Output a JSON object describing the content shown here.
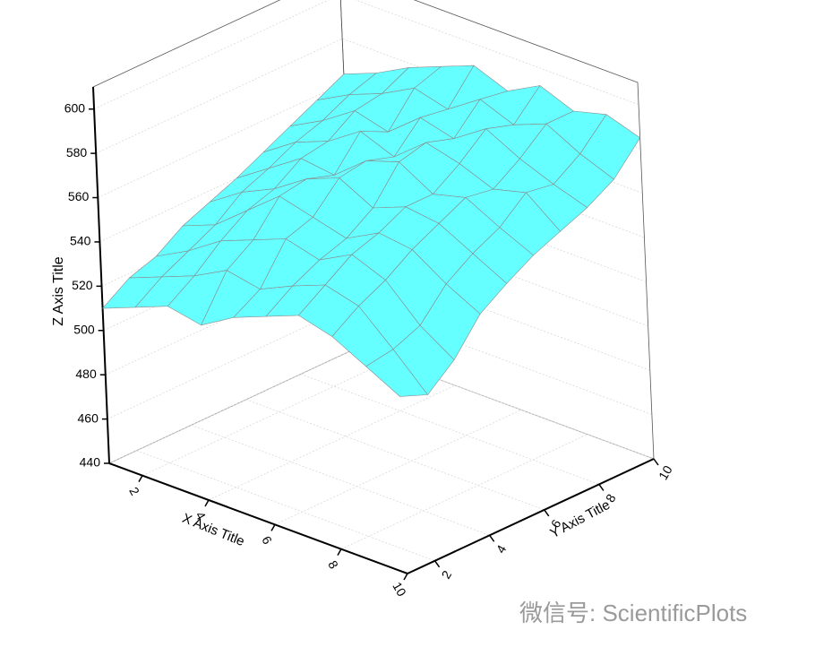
{
  "chart_data": {
    "type": "surface",
    "x_label": "X Axis Title",
    "y_label": "Y Axis Title",
    "z_label": "Z Axis Title",
    "x": [
      1,
      2,
      3,
      4,
      5,
      6,
      7,
      8,
      9,
      10
    ],
    "y": [
      1,
      2,
      3,
      4,
      5,
      6,
      7,
      8,
      9,
      10
    ],
    "z": [
      [
        510,
        516,
        522,
        519,
        528,
        534,
        540,
        536,
        528,
        520
      ],
      [
        518,
        524,
        530,
        538,
        535,
        542,
        548,
        544,
        530,
        515
      ],
      [
        522,
        530,
        540,
        546,
        552,
        548,
        556,
        550,
        535,
        525
      ],
      [
        530,
        536,
        548,
        560,
        556,
        552,
        560,
        558,
        548,
        540
      ],
      [
        535,
        545,
        552,
        562,
        568,
        560,
        566,
        564,
        556,
        548
      ],
      [
        540,
        550,
        560,
        558,
        570,
        575,
        566,
        570,
        562,
        555
      ],
      [
        546,
        556,
        562,
        572,
        566,
        578,
        574,
        568,
        572,
        560
      ],
      [
        552,
        560,
        570,
        566,
        578,
        574,
        584,
        576,
        570,
        565
      ],
      [
        558,
        566,
        572,
        580,
        576,
        586,
        580,
        586,
        578,
        572
      ],
      [
        564,
        570,
        578,
        584,
        590,
        584,
        592,
        586,
        590,
        585
      ]
    ],
    "xlim": [
      1,
      10
    ],
    "ylim": [
      1,
      10
    ],
    "zlim": [
      440,
      610
    ],
    "xticks": [
      2,
      4,
      6,
      8,
      10
    ],
    "yticks": [
      2,
      4,
      6,
      8,
      10
    ],
    "zticks": [
      440,
      460,
      480,
      500,
      520,
      540,
      560,
      580,
      600
    ],
    "top_color": "#66ffff",
    "bottom_color": "#008080",
    "grid": true
  },
  "watermark": "微信号: ScientificPlots"
}
